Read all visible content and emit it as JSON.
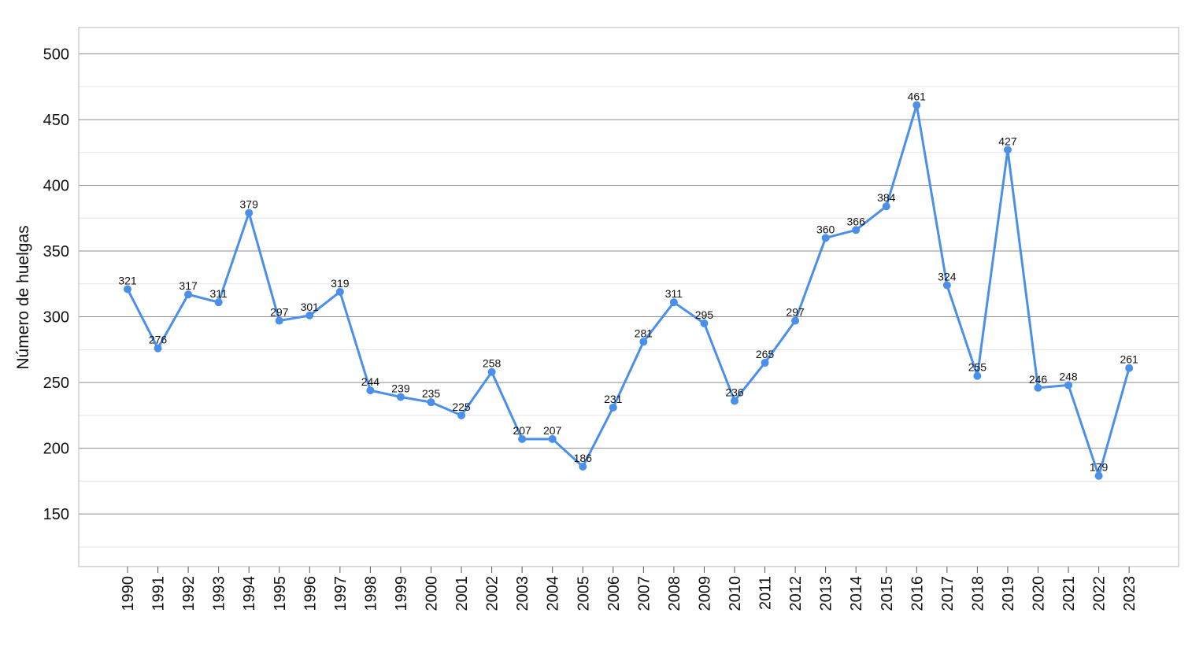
{
  "chart_data": {
    "type": "line",
    "title": "",
    "xlabel": "",
    "ylabel": "Número de huelgas",
    "ylim": [
      110,
      520
    ],
    "yticks": [
      150,
      200,
      250,
      300,
      350,
      400,
      450,
      500
    ],
    "grid": true,
    "legend": "none",
    "categories": [
      "1990",
      "1991",
      "1992",
      "1993",
      "1994",
      "1995",
      "1996",
      "1997",
      "1998",
      "1999",
      "2000",
      "2001",
      "2002",
      "2003",
      "2004",
      "2005",
      "2006",
      "2007",
      "2008",
      "2009",
      "2010",
      "2011",
      "2012",
      "2013",
      "2014",
      "2015",
      "2016",
      "2017",
      "2018",
      "2019",
      "2020",
      "2021",
      "2022",
      "2023"
    ],
    "series": [
      {
        "values": [
          321,
          276,
          317,
          311,
          379,
          297,
          301,
          319,
          244,
          239,
          235,
          225,
          258,
          207,
          207,
          186,
          231,
          281,
          311,
          295,
          236,
          265,
          297,
          360,
          366,
          384,
          461,
          324,
          255,
          427,
          246,
          248,
          179,
          261
        ],
        "color": "#4A8FEA"
      }
    ]
  }
}
